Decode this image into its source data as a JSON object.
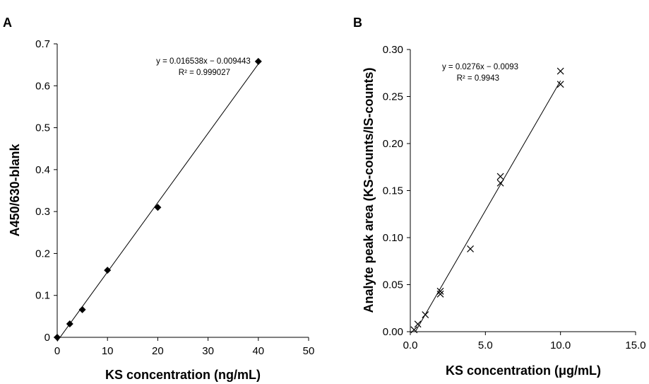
{
  "chart_data": [
    {
      "panel_label": "A",
      "type": "scatter",
      "marker": "diamond",
      "xlabel": "KS concentration (ng/mL)",
      "ylabel": "A450/630-blank",
      "xlim": [
        0,
        50
      ],
      "ylim": [
        0,
        0.7
      ],
      "x_ticks": [
        "0",
        "10",
        "20",
        "30",
        "40",
        "50"
      ],
      "y_ticks": [
        "0",
        "0.1",
        "0.2",
        "0.3",
        "0.4",
        "0.5",
        "0.6",
        "0.7"
      ],
      "points": [
        {
          "x": 0,
          "y": 0.0
        },
        {
          "x": 2.5,
          "y": 0.032
        },
        {
          "x": 5,
          "y": 0.066
        },
        {
          "x": 10,
          "y": 0.16
        },
        {
          "x": 20,
          "y": 0.31
        },
        {
          "x": 40,
          "y": 0.658
        }
      ],
      "trendline": {
        "slope": 0.016538,
        "intercept": -0.009443,
        "x_range": [
          0,
          40
        ]
      },
      "equation": "y = 0.016538x − 0.009443",
      "r2_label": "R² = 0.999027",
      "grid": false
    },
    {
      "panel_label": "B",
      "type": "scatter",
      "marker": "x",
      "xlabel": "KS concentration (μg/mL)",
      "ylabel": "Analyte peak area (KS-counts/IS-counts)",
      "xlim": [
        0,
        15
      ],
      "ylim": [
        0,
        0.3
      ],
      "x_ticks": [
        "0.0",
        "5.0",
        "10.0",
        "15.0"
      ],
      "y_ticks": [
        "0.00",
        "0.05",
        "0.10",
        "0.15",
        "0.20",
        "0.25",
        "0.30"
      ],
      "points": [
        {
          "x": 0.25,
          "y": 0.002
        },
        {
          "x": 0.5,
          "y": 0.008
        },
        {
          "x": 1.0,
          "y": 0.018
        },
        {
          "x": 2.0,
          "y": 0.04
        },
        {
          "x": 2.0,
          "y": 0.043
        },
        {
          "x": 4.0,
          "y": 0.088
        },
        {
          "x": 6.0,
          "y": 0.158
        },
        {
          "x": 6.0,
          "y": 0.165
        },
        {
          "x": 10.0,
          "y": 0.263
        },
        {
          "x": 10.0,
          "y": 0.277
        }
      ],
      "trendline": {
        "slope": 0.0276,
        "intercept": -0.0093,
        "x_range": [
          0.35,
          10
        ]
      },
      "equation": "y = 0.0276x − 0.0093",
      "r2_label": "R² = 0.9943",
      "grid": false
    }
  ]
}
